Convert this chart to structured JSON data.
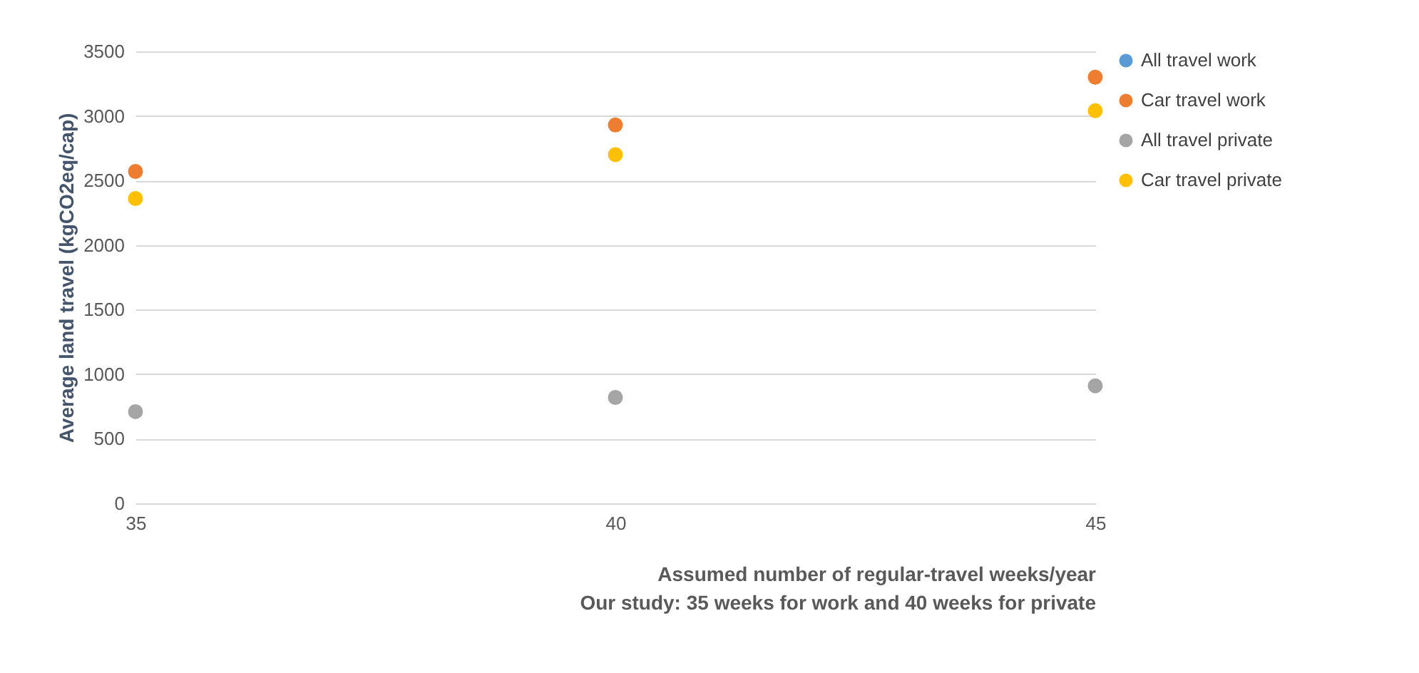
{
  "chart_data": {
    "type": "scatter",
    "xlabel": "Assumed number of regular-travel weeks/year\nOur study: 35 weeks for work and 40 weeks for private",
    "ylabel": "Average land travel (kgCO2eq/cap)",
    "x": [
      35,
      40,
      45
    ],
    "series": [
      {
        "name": "All travel work",
        "color": "#5b9bd5",
        "values": [
          null,
          null,
          null
        ]
      },
      {
        "name": "Car travel work",
        "color": "#ed7d31",
        "values": [
          2570,
          2930,
          3300
        ]
      },
      {
        "name": "All travel private",
        "color": "#a5a5a5",
        "values": [
          710,
          820,
          910
        ]
      },
      {
        "name": "Car travel private",
        "color": "#ffc000",
        "values": [
          2360,
          2700,
          3040
        ]
      }
    ],
    "xlim": [
      35,
      45
    ],
    "xticks": [
      35,
      40,
      45
    ],
    "ylim": [
      0,
      3500
    ],
    "yticks": [
      0,
      500,
      {
        "value": 1000,
        "label": "1000"
      },
      {
        "value": 1500,
        "label": "1500"
      },
      {
        "value": 2000,
        "label": "2000"
      },
      {
        "value": 2500,
        "label": "2500"
      },
      {
        "value": 3000,
        "label": "3000"
      },
      {
        "value": 3500,
        "label": "3500"
      }
    ],
    "grid": "y",
    "legend": "right",
    "marker": "circle"
  }
}
